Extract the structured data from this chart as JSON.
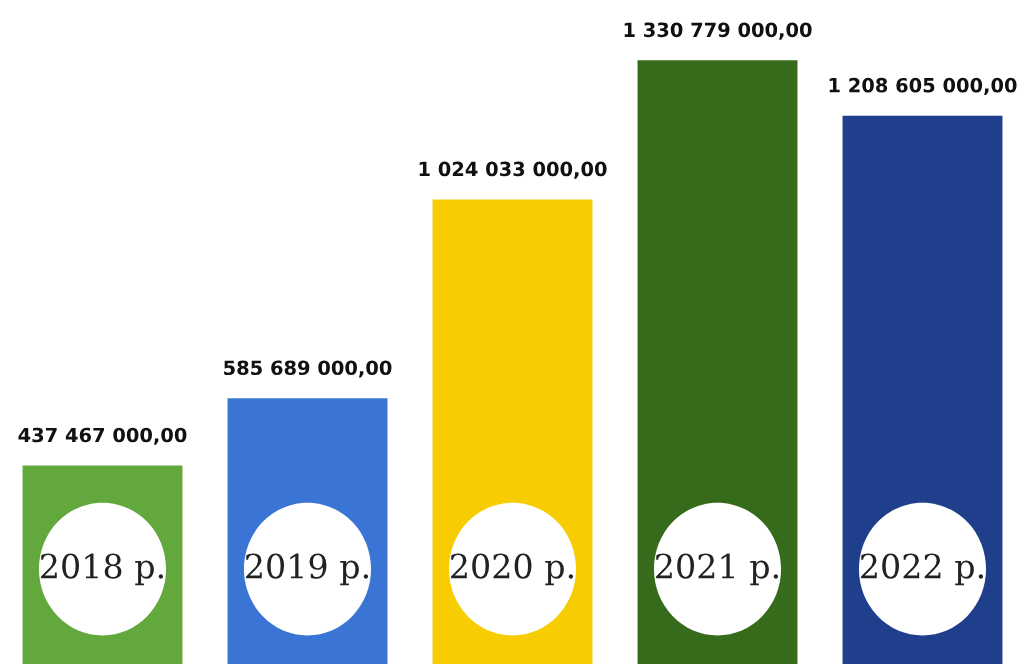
{
  "chart_data": {
    "type": "bar",
    "categories": [
      "2018 р.",
      "2019 р.",
      "2020 р.",
      "2021 р.",
      "2022 р."
    ],
    "values": [
      437467000,
      585689000,
      1024033000,
      1330779000,
      1208605000
    ],
    "value_labels": [
      "437 467 000,00",
      "585 689 000,00",
      "1 024 033 000,00",
      "1 330 779 000,00",
      "1 208 605 000,00"
    ],
    "colors": [
      "#62a83c",
      "#3a74d4",
      "#f7cc00",
      "#356b1a",
      "#1f3f8c"
    ]
  }
}
